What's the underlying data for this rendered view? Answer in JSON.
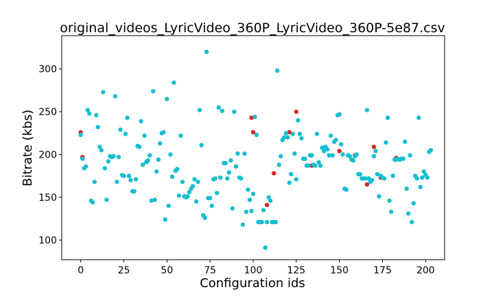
{
  "chart_data": {
    "type": "scatter",
    "title": "original_videos_LyricVideo_360P_LyricVideo_360P-5e87.csv",
    "xlabel": "Configuration ids",
    "ylabel": "Bitrate (kbs)",
    "xlim": [
      -11,
      211
    ],
    "ylim": [
      77,
      339
    ],
    "xticks": [
      0,
      25,
      50,
      75,
      100,
      125,
      150,
      175,
      200
    ],
    "yticks": [
      100,
      150,
      200,
      250,
      300
    ],
    "grid": false,
    "colors": {
      "back": "#d62728",
      "front": "#17becf"
    },
    "series": [
      {
        "color": "#d62728",
        "points": [
          [
            0,
            226
          ],
          [
            1,
            197
          ],
          [
            99,
            243
          ],
          [
            100,
            226
          ],
          [
            108,
            141
          ],
          [
            112,
            178
          ],
          [
            121,
            226
          ],
          [
            125,
            250
          ],
          [
            134,
            187
          ],
          [
            150,
            204
          ],
          [
            159,
            199
          ],
          [
            166,
            165
          ],
          [
            170,
            209
          ],
          [
            174,
            173
          ],
          [
            183,
            196
          ]
        ]
      },
      {
        "color": "#17becf",
        "points": [
          [
            0,
            223
          ],
          [
            1,
            195
          ],
          [
            2,
            184
          ],
          [
            3,
            186
          ],
          [
            4,
            252
          ],
          [
            5,
            248
          ],
          [
            6,
            146
          ],
          [
            7,
            144
          ],
          [
            8,
            168
          ],
          [
            9,
            246
          ],
          [
            10,
            232
          ],
          [
            11,
            209
          ],
          [
            12,
            205
          ],
          [
            13,
            273
          ],
          [
            14,
            184
          ],
          [
            15,
            147
          ],
          [
            16,
            192
          ],
          [
            17,
            198
          ],
          [
            18,
            197
          ],
          [
            19,
            198
          ],
          [
            20,
            268
          ],
          [
            21,
            168
          ],
          [
            22,
            197
          ],
          [
            23,
            229
          ],
          [
            24,
            176
          ],
          [
            25,
            175
          ],
          [
            26,
            224
          ],
          [
            27,
            243
          ],
          [
            28,
            175
          ],
          [
            29,
            170
          ],
          [
            30,
            157
          ],
          [
            31,
            157
          ],
          [
            32,
            171
          ],
          [
            33,
            210
          ],
          [
            34,
            209
          ],
          [
            35,
            239
          ],
          [
            36,
            188
          ],
          [
            37,
            222
          ],
          [
            38,
            191
          ],
          [
            39,
            193
          ],
          [
            40,
            199
          ],
          [
            41,
            146
          ],
          [
            42,
            274
          ],
          [
            43,
            147
          ],
          [
            44,
            180
          ],
          [
            45,
            194
          ],
          [
            46,
            213
          ],
          [
            47,
            225
          ],
          [
            48,
            226
          ],
          [
            49,
            124
          ],
          [
            50,
            265
          ],
          [
            51,
            140
          ],
          [
            52,
            200
          ],
          [
            53,
            174
          ],
          [
            54,
            284
          ],
          [
            55,
            181
          ],
          [
            56,
            183
          ],
          [
            57,
            152
          ],
          [
            58,
            222
          ],
          [
            59,
            168
          ],
          [
            60,
            151
          ],
          [
            61,
            150
          ],
          [
            62,
            151
          ],
          [
            63,
            156
          ],
          [
            64,
            160
          ],
          [
            65,
            163
          ],
          [
            66,
            171
          ],
          [
            67,
            145
          ],
          [
            68,
            168
          ],
          [
            69,
            252
          ],
          [
            70,
            211
          ],
          [
            71,
            129
          ],
          [
            72,
            126
          ],
          [
            73,
            320
          ],
          [
            74,
            149
          ],
          [
            75,
            149
          ],
          [
            76,
            140
          ],
          [
            77,
            171
          ],
          [
            78,
            172
          ],
          [
            79,
            155
          ],
          [
            80,
            255
          ],
          [
            81,
            173
          ],
          [
            82,
            251
          ],
          [
            83,
            190
          ],
          [
            84,
            190
          ],
          [
            85,
            172
          ],
          [
            86,
            179
          ],
          [
            87,
            193
          ],
          [
            88,
            137
          ],
          [
            89,
            250
          ],
          [
            90,
            186
          ],
          [
            91,
            201
          ],
          [
            92,
            173
          ],
          [
            93,
            172
          ],
          [
            94,
            118
          ],
          [
            95,
            201
          ],
          [
            96,
            133
          ],
          [
            97,
            159
          ],
          [
            98,
            147
          ],
          [
            99,
            134
          ],
          [
            100,
            154
          ],
          [
            101,
            244
          ],
          [
            102,
            223
          ],
          [
            103,
            121
          ],
          [
            104,
            121
          ],
          [
            105,
            121
          ],
          [
            106,
            135
          ],
          [
            107,
            91
          ],
          [
            108,
            121
          ],
          [
            109,
            150
          ],
          [
            110,
            146
          ],
          [
            111,
            121
          ],
          [
            112,
            121
          ],
          [
            113,
            121
          ],
          [
            114,
            298
          ],
          [
            115,
            188
          ],
          [
            116,
            198
          ],
          [
            117,
            217
          ],
          [
            118,
            220
          ],
          [
            119,
            225
          ],
          [
            120,
            220
          ],
          [
            121,
            167
          ],
          [
            122,
            177
          ],
          [
            123,
            224
          ],
          [
            124,
            201
          ],
          [
            125,
            171
          ],
          [
            126,
            240
          ],
          [
            127,
            224
          ],
          [
            128,
            219
          ],
          [
            129,
            195
          ],
          [
            130,
            195
          ],
          [
            131,
            187
          ],
          [
            132,
            187
          ],
          [
            133,
            199
          ],
          [
            134,
            199
          ],
          [
            135,
            188
          ],
          [
            136,
            187
          ],
          [
            137,
            224
          ],
          [
            138,
            191
          ],
          [
            139,
            187
          ],
          [
            140,
            208
          ],
          [
            141,
            204
          ],
          [
            142,
            209
          ],
          [
            143,
            206
          ],
          [
            144,
            199
          ],
          [
            145,
            222
          ],
          [
            146,
            199
          ],
          [
            147,
            215
          ],
          [
            148,
            217
          ],
          [
            149,
            246
          ],
          [
            150,
            247
          ],
          [
            151,
            212
          ],
          [
            152,
            200
          ],
          [
            153,
            160
          ],
          [
            154,
            159
          ],
          [
            155,
            199
          ],
          [
            156,
            198
          ],
          [
            157,
            194
          ],
          [
            158,
            193
          ],
          [
            159,
            198
          ],
          [
            160,
            200
          ],
          [
            161,
            177
          ],
          [
            162,
            177
          ],
          [
            163,
            172
          ],
          [
            164,
            172
          ],
          [
            165,
            172
          ],
          [
            166,
            252
          ],
          [
            167,
            172
          ],
          [
            168,
            168
          ],
          [
            169,
            170
          ],
          [
            170,
            198
          ],
          [
            171,
            204
          ],
          [
            172,
            177
          ],
          [
            173,
            151
          ],
          [
            174,
            175
          ],
          [
            175,
            173
          ],
          [
            176,
            172
          ],
          [
            177,
            214
          ],
          [
            178,
            243
          ],
          [
            179,
            146
          ],
          [
            180,
            133
          ],
          [
            181,
            175
          ],
          [
            182,
            194
          ],
          [
            183,
            194
          ],
          [
            184,
            195
          ],
          [
            185,
            194
          ],
          [
            186,
            195
          ],
          [
            187,
            195
          ],
          [
            188,
            215
          ],
          [
            189,
            160
          ],
          [
            190,
            131
          ],
          [
            191,
            199
          ],
          [
            192,
            121
          ],
          [
            193,
            143
          ],
          [
            194,
            175
          ],
          [
            195,
            172
          ],
          [
            196,
            243
          ],
          [
            197,
            162
          ],
          [
            198,
            173
          ],
          [
            199,
            180
          ],
          [
            200,
            176
          ],
          [
            201,
            173
          ],
          [
            202,
            203
          ],
          [
            203,
            205
          ]
        ]
      }
    ]
  }
}
